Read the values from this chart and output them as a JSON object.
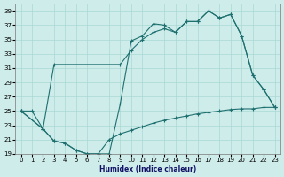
{
  "xlabel": "Humidex (Indice chaleur)",
  "xlim": [
    -0.5,
    23.5
  ],
  "ylim": [
    19,
    40
  ],
  "yticks": [
    19,
    21,
    23,
    25,
    27,
    29,
    31,
    33,
    35,
    37,
    39
  ],
  "xticks": [
    0,
    1,
    2,
    3,
    4,
    5,
    6,
    7,
    8,
    9,
    10,
    11,
    12,
    13,
    14,
    15,
    16,
    17,
    18,
    19,
    20,
    21,
    22,
    23
  ],
  "bg_color": "#ceecea",
  "grid_color": "#aad8d4",
  "line_color": "#1e7070",
  "line1_x": [
    0,
    1,
    2,
    3,
    4,
    5,
    6,
    7,
    8,
    9,
    10,
    11,
    12,
    13,
    14,
    15,
    16,
    17,
    18,
    19,
    20,
    21,
    22,
    23
  ],
  "line1_y": [
    25.0,
    25.0,
    22.5,
    20.8,
    20.5,
    19.5,
    19.0,
    19.0,
    19.0,
    26.0,
    34.8,
    35.5,
    37.2,
    37.0,
    36.0,
    37.5,
    37.5,
    39.0,
    38.0,
    38.5,
    35.5,
    30.0,
    28.0,
    25.5
  ],
  "line2_x": [
    0,
    2,
    3,
    9,
    10,
    11,
    12,
    13,
    14,
    15,
    16,
    17,
    18,
    19,
    20,
    21,
    22,
    23
  ],
  "line2_y": [
    25.0,
    22.5,
    31.5,
    31.5,
    33.5,
    35.0,
    36.0,
    36.5,
    36.0,
    37.5,
    37.5,
    39.0,
    38.0,
    38.5,
    35.5,
    30.0,
    28.0,
    25.5
  ],
  "line3_x": [
    0,
    2,
    3,
    4,
    5,
    6,
    7,
    8,
    9,
    10,
    11,
    12,
    13,
    14,
    15,
    16,
    17,
    18,
    19,
    20,
    21,
    22,
    23
  ],
  "line3_y": [
    25.0,
    22.5,
    20.8,
    20.5,
    19.5,
    19.0,
    19.0,
    21.0,
    21.8,
    22.3,
    22.8,
    23.3,
    23.7,
    24.0,
    24.3,
    24.6,
    24.8,
    25.0,
    25.2,
    25.3,
    25.3,
    25.5,
    25.5
  ]
}
